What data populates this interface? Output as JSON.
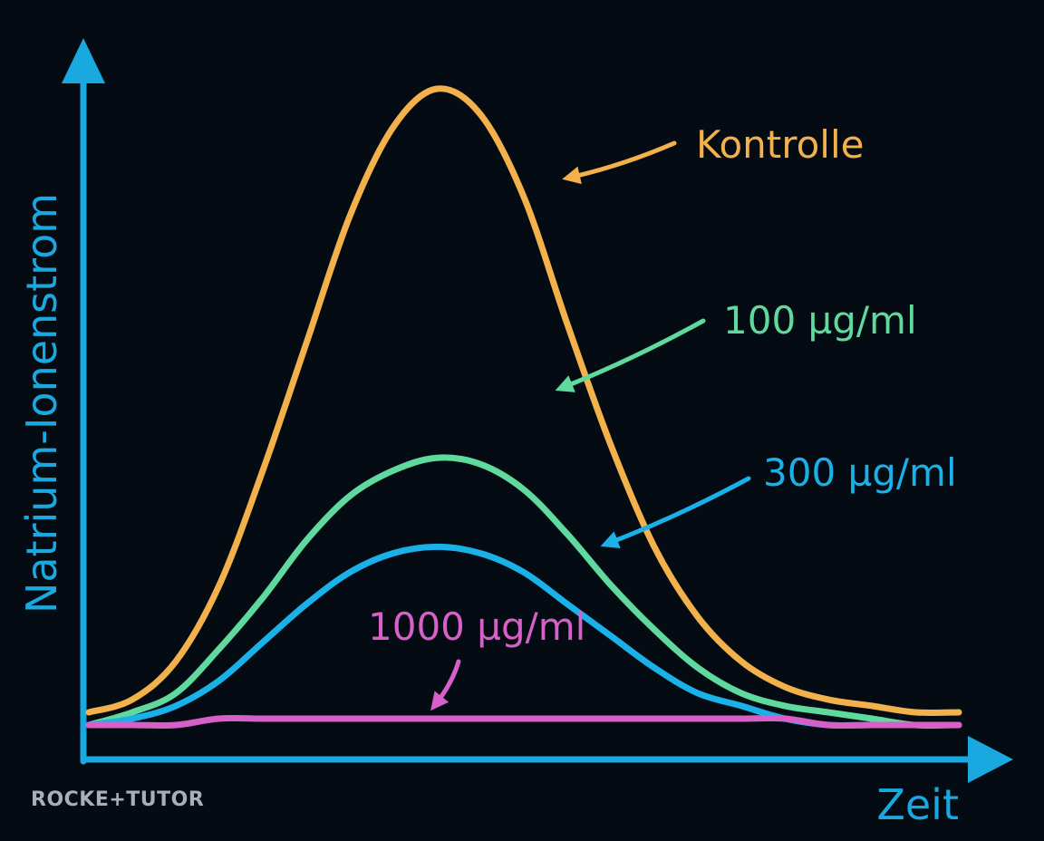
{
  "chart_data": {
    "type": "line",
    "xlabel": "Zeit",
    "ylabel": "Natrium-Ionenstrom",
    "axis_color": "#1aa8e0",
    "grid": false,
    "tick_labels": false,
    "x": [
      0,
      0.05,
      0.1,
      0.15,
      0.2,
      0.25,
      0.3,
      0.35,
      0.4,
      0.45,
      0.5,
      0.55,
      0.6,
      0.65,
      0.7,
      0.75,
      0.8,
      0.85,
      0.9,
      0.95,
      1.0
    ],
    "series": [
      {
        "name": "Kontrolle",
        "color": "#f2b14a",
        "values": [
          0.02,
          0.04,
          0.1,
          0.22,
          0.4,
          0.6,
          0.8,
          0.94,
          1.0,
          0.96,
          0.83,
          0.63,
          0.44,
          0.28,
          0.17,
          0.1,
          0.06,
          0.04,
          0.03,
          0.02,
          0.02
        ]
      },
      {
        "name": "100 µg/ml",
        "color": "#5fd99e",
        "values": [
          0.0,
          0.02,
          0.05,
          0.12,
          0.2,
          0.29,
          0.36,
          0.4,
          0.42,
          0.41,
          0.37,
          0.3,
          0.22,
          0.15,
          0.09,
          0.05,
          0.03,
          0.02,
          0.01,
          0.0,
          0.0
        ]
      },
      {
        "name": "300 µg/ml",
        "color": "#1ab0e8",
        "values": [
          0.0,
          0.01,
          0.03,
          0.07,
          0.13,
          0.19,
          0.24,
          0.27,
          0.28,
          0.27,
          0.24,
          0.19,
          0.14,
          0.09,
          0.05,
          0.03,
          0.01,
          0.0,
          0.0,
          0.0,
          0.0
        ]
      },
      {
        "name": "1000 µg/ml",
        "color": "#d65fc8",
        "values": [
          0.0,
          0.0,
          0.0,
          0.01,
          0.01,
          0.01,
          0.01,
          0.01,
          0.01,
          0.01,
          0.01,
          0.01,
          0.01,
          0.01,
          0.01,
          0.01,
          0.01,
          0.0,
          0.0,
          0.0,
          0.0
        ]
      }
    ]
  },
  "watermark": "ROCKE+TUTOR"
}
